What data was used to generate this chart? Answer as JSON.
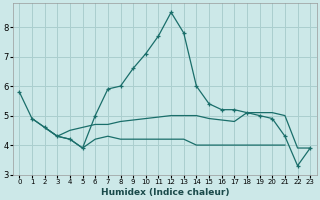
{
  "xlabel": "Humidex (Indice chaleur)",
  "bg_color": "#cce8e8",
  "grid_color": "#aacece",
  "line_color": "#1a6e6a",
  "ylim": [
    3.0,
    8.8
  ],
  "xlim": [
    -0.5,
    23.5
  ],
  "yticks": [
    3,
    4,
    5,
    6,
    7,
    8
  ],
  "xticks": [
    0,
    1,
    2,
    3,
    4,
    5,
    6,
    7,
    8,
    9,
    10,
    11,
    12,
    13,
    14,
    15,
    16,
    17,
    18,
    19,
    20,
    21,
    22,
    23
  ],
  "main_x": [
    0,
    1,
    2,
    3,
    4,
    5,
    6,
    7,
    8,
    9,
    10,
    11,
    12,
    13,
    14,
    15,
    16,
    17,
    18,
    19,
    20,
    21,
    22,
    23
  ],
  "main_y": [
    5.8,
    4.9,
    4.6,
    4.3,
    4.2,
    3.9,
    5.0,
    5.9,
    6.0,
    6.6,
    7.1,
    7.7,
    8.5,
    7.8,
    6.0,
    5.4,
    5.2,
    5.2,
    5.1,
    5.0,
    4.9,
    4.3,
    3.3,
    3.9
  ],
  "flat_x": [
    2,
    3,
    4,
    5,
    6,
    7,
    8,
    9,
    10,
    11,
    12,
    13,
    14,
    15,
    16,
    17,
    18,
    19,
    20,
    21
  ],
  "flat_y": [
    4.6,
    4.3,
    4.2,
    3.9,
    4.2,
    4.3,
    4.2,
    4.2,
    4.2,
    4.2,
    4.2,
    4.2,
    4.0,
    4.0,
    4.0,
    4.0,
    4.0,
    4.0,
    4.0,
    4.0
  ],
  "grad_x": [
    1,
    2,
    3,
    4,
    5,
    6,
    7,
    8,
    9,
    10,
    11,
    12,
    13,
    14,
    15,
    16,
    17,
    18,
    19,
    20,
    21,
    22,
    23
  ],
  "grad_y": [
    4.9,
    4.6,
    4.3,
    4.5,
    4.6,
    4.7,
    4.7,
    4.8,
    4.85,
    4.9,
    4.95,
    5.0,
    5.0,
    5.0,
    4.9,
    4.85,
    4.8,
    5.1,
    5.1,
    5.1,
    5.0,
    3.9,
    3.9
  ]
}
